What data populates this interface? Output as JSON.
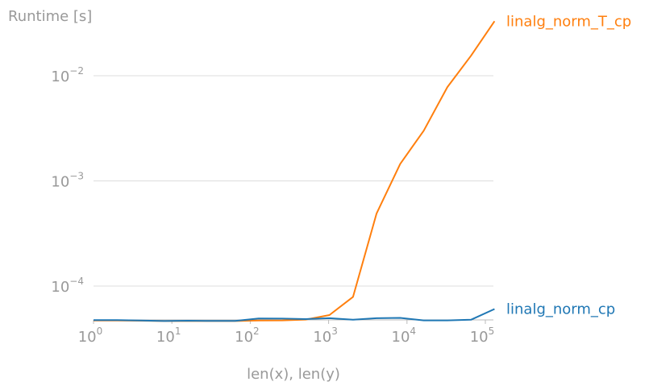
{
  "chart_data": {
    "type": "line",
    "ylabel": "Runtime [s]",
    "xlabel": "len(x), len(y)",
    "xscale": "log",
    "yscale": "log",
    "xlim": [
      1,
      150000
    ],
    "ylim": [
      4e-05,
      0.05
    ],
    "grid": "horizontal",
    "legend": "inline-right",
    "x_ticks": [
      {
        "value": 1,
        "base": "10",
        "exp": "0"
      },
      {
        "value": 10,
        "base": "10",
        "exp": "1"
      },
      {
        "value": 100,
        "base": "10",
        "exp": "2"
      },
      {
        "value": 1000,
        "base": "10",
        "exp": "3"
      },
      {
        "value": 10000,
        "base": "10",
        "exp": "4"
      },
      {
        "value": 100000,
        "base": "10",
        "exp": "5"
      }
    ],
    "y_ticks": [
      {
        "value": 0.0001,
        "base": "10",
        "exp": "−4"
      },
      {
        "value": 0.001,
        "base": "10",
        "exp": "−3"
      },
      {
        "value": 0.01,
        "base": "10",
        "exp": "−2"
      }
    ],
    "x": [
      1,
      2,
      4,
      8,
      16,
      32,
      64,
      128,
      256,
      512,
      1024,
      2048,
      4096,
      8192,
      16384,
      32768,
      65536,
      131072
    ],
    "series": [
      {
        "name": "linalg_norm_T_cp",
        "color": "#ff7f0e",
        "values": [
          4.7e-05,
          4.7e-05,
          4.68e-05,
          4.65e-05,
          4.65e-05,
          4.65e-05,
          4.65e-05,
          4.7e-05,
          4.72e-05,
          4.8e-05,
          5.3e-05,
          7.9e-05,
          0.00049,
          0.00145,
          0.003,
          0.0078,
          0.0155,
          0.033
        ]
      },
      {
        "name": "linalg_norm_cp",
        "color": "#1f77b4",
        "values": [
          4.75e-05,
          4.75e-05,
          4.7e-05,
          4.65e-05,
          4.68e-05,
          4.66e-05,
          4.66e-05,
          4.92e-05,
          4.9e-05,
          4.85e-05,
          4.95e-05,
          4.78e-05,
          4.95e-05,
          4.98e-05,
          4.72e-05,
          4.72e-05,
          4.78e-05,
          6.05e-05
        ]
      }
    ]
  }
}
